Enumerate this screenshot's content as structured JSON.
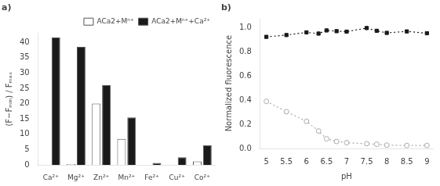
{
  "chart_data": [
    {
      "type": "bar",
      "title": "a)",
      "y_label": "(F−Fₘᵢₙ) / Fₘₐₓ",
      "categories": [
        "Ca²⁺",
        "Mg²⁺",
        "Zn²⁺",
        "Mn²⁺",
        "Fe²⁺",
        "Cu²⁺",
        "Co²⁺"
      ],
      "series": [
        {
          "name": "ACa2+Mⁿ⁺",
          "color": "#ffffff",
          "values": [
            0.0,
            0.3,
            20.0,
            8.5,
            0.0,
            0.0,
            1.2
          ]
        },
        {
          "name": "ACa2+Mⁿ⁺+Ca²⁺",
          "color": "#1a1a1a",
          "values": [
            41.5,
            38.5,
            26.0,
            15.5,
            0.7,
            2.5,
            6.5
          ]
        }
      ],
      "ylim": [
        0,
        43
      ],
      "yticks": [
        0,
        5,
        10,
        15,
        20,
        25,
        30,
        35,
        40
      ],
      "legend": "upper right",
      "grid": false
    },
    {
      "type": "line",
      "title": "b)",
      "x_label": "pH",
      "y_label": "Normalized fluorescence",
      "x": [
        5.0,
        5.5,
        6.0,
        6.3,
        6.5,
        6.75,
        7.0,
        7.5,
        7.75,
        8.0,
        8.5,
        9.0
      ],
      "series": [
        {
          "color": "#1a1a1a",
          "marker": "square",
          "line_style": "dotted",
          "values": [
            0.925,
            0.94,
            0.962,
            0.952,
            0.978,
            0.972,
            0.968,
            0.998,
            0.975,
            0.958,
            0.97,
            0.955
          ]
        },
        {
          "color": "#aaaaaa",
          "marker": "open_circle",
          "line_style": "dotted",
          "values": [
            0.39,
            0.305,
            0.225,
            0.145,
            0.08,
            0.058,
            0.048,
            0.04,
            0.035,
            0.028,
            0.025,
            0.025
          ]
        }
      ],
      "xlim": [
        4.85,
        9.15
      ],
      "xticks": [
        5.0,
        5.5,
        6.0,
        6.5,
        7.0,
        7.5,
        8.0,
        8.5,
        9.0
      ],
      "ylim": [
        0.0,
        1.08
      ],
      "yticks": [
        {
          "value": 0.0,
          "label": "0.0"
        },
        0.2,
        0.4,
        0.6,
        0.8,
        {
          "value": 1.0,
          "label": "1.0"
        }
      ],
      "grid": false
    }
  ]
}
